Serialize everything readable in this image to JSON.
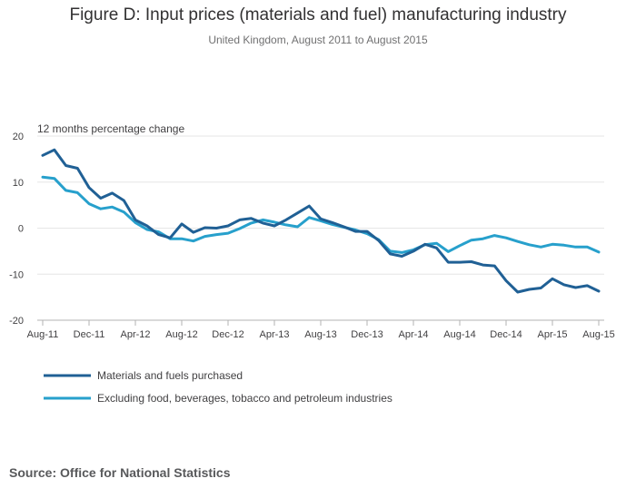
{
  "header": {
    "title": "Figure D: Input prices (materials and fuel) manufacturing industry",
    "subtitle": "United Kingdom, August 2011 to August 2015"
  },
  "footer": {
    "source": "Source: Office for National Statistics"
  },
  "chart_data": {
    "type": "line",
    "title": "Figure D: Input prices (materials and fuel) manufacturing industry",
    "subtitle": "United Kingdom, August 2011 to August 2015",
    "ylabel": "12 months percentage change",
    "xlabel": "",
    "ylim": [
      -20,
      20
    ],
    "yticks": [
      20,
      10,
      0,
      -10,
      -20
    ],
    "grid": true,
    "legend_position": "bottom-left",
    "x": [
      "Aug-11",
      "Sep-11",
      "Oct-11",
      "Nov-11",
      "Dec-11",
      "Jan-12",
      "Feb-12",
      "Mar-12",
      "Apr-12",
      "May-12",
      "Jun-12",
      "Jul-12",
      "Aug-12",
      "Sep-12",
      "Oct-12",
      "Nov-12",
      "Dec-12",
      "Jan-13",
      "Feb-13",
      "Mar-13",
      "Apr-13",
      "May-13",
      "Jun-13",
      "Jul-13",
      "Aug-13",
      "Sep-13",
      "Oct-13",
      "Nov-13",
      "Dec-13",
      "Jan-14",
      "Feb-14",
      "Mar-14",
      "Apr-14",
      "May-14",
      "Jun-14",
      "Jul-14",
      "Aug-14",
      "Sep-14",
      "Oct-14",
      "Nov-14",
      "Dec-14",
      "Jan-15",
      "Feb-15",
      "Mar-15",
      "Apr-15",
      "May-15",
      "Jun-15",
      "Jul-15",
      "Aug-15"
    ],
    "xtick_labels": [
      "Aug-11",
      "Dec-11",
      "Apr-12",
      "Aug-12",
      "Dec-12",
      "Apr-13",
      "Aug-13",
      "Dec-13",
      "Apr-14",
      "Aug-14",
      "Dec-14",
      "Apr-15",
      "Aug-15"
    ],
    "series": [
      {
        "name": "Materials and fuels purchased",
        "color": "#206095",
        "values": [
          15.8,
          17.0,
          13.6,
          13.0,
          8.8,
          6.5,
          7.6,
          6.0,
          1.8,
          0.5,
          -1.4,
          -2.1,
          0.9,
          -0.9,
          0.1,
          0.0,
          0.5,
          1.8,
          2.1,
          1.1,
          0.5,
          1.8,
          3.3,
          4.8,
          2.0,
          1.2,
          0.3,
          -0.7,
          -0.7,
          -2.7,
          -5.6,
          -6.1,
          -5.0,
          -3.5,
          -4.3,
          -7.4,
          -7.4,
          -7.3,
          -8.0,
          -8.2,
          -11.4,
          -13.9,
          -13.3,
          -13.0,
          -11.0,
          -12.3,
          -12.9,
          -12.5,
          -13.7
        ]
      },
      {
        "name": "Excluding food, beverages, tobacco and petroleum industries",
        "color": "#27a0cc",
        "values": [
          11.1,
          10.8,
          8.2,
          7.7,
          5.3,
          4.2,
          4.6,
          3.5,
          1.2,
          -0.3,
          -0.8,
          -2.3,
          -2.3,
          -2.8,
          -1.8,
          -1.4,
          -1.1,
          -0.1,
          1.1,
          1.8,
          1.3,
          0.7,
          0.3,
          2.3,
          1.6,
          0.8,
          0.2,
          -0.4,
          -1.2,
          -2.5,
          -5.0,
          -5.3,
          -4.7,
          -3.6,
          -3.3,
          -5.1,
          -3.8,
          -2.6,
          -2.3,
          -1.6,
          -2.1,
          -2.9,
          -3.6,
          -4.1,
          -3.5,
          -3.7,
          -4.1,
          -4.1,
          -5.2
        ]
      }
    ]
  }
}
